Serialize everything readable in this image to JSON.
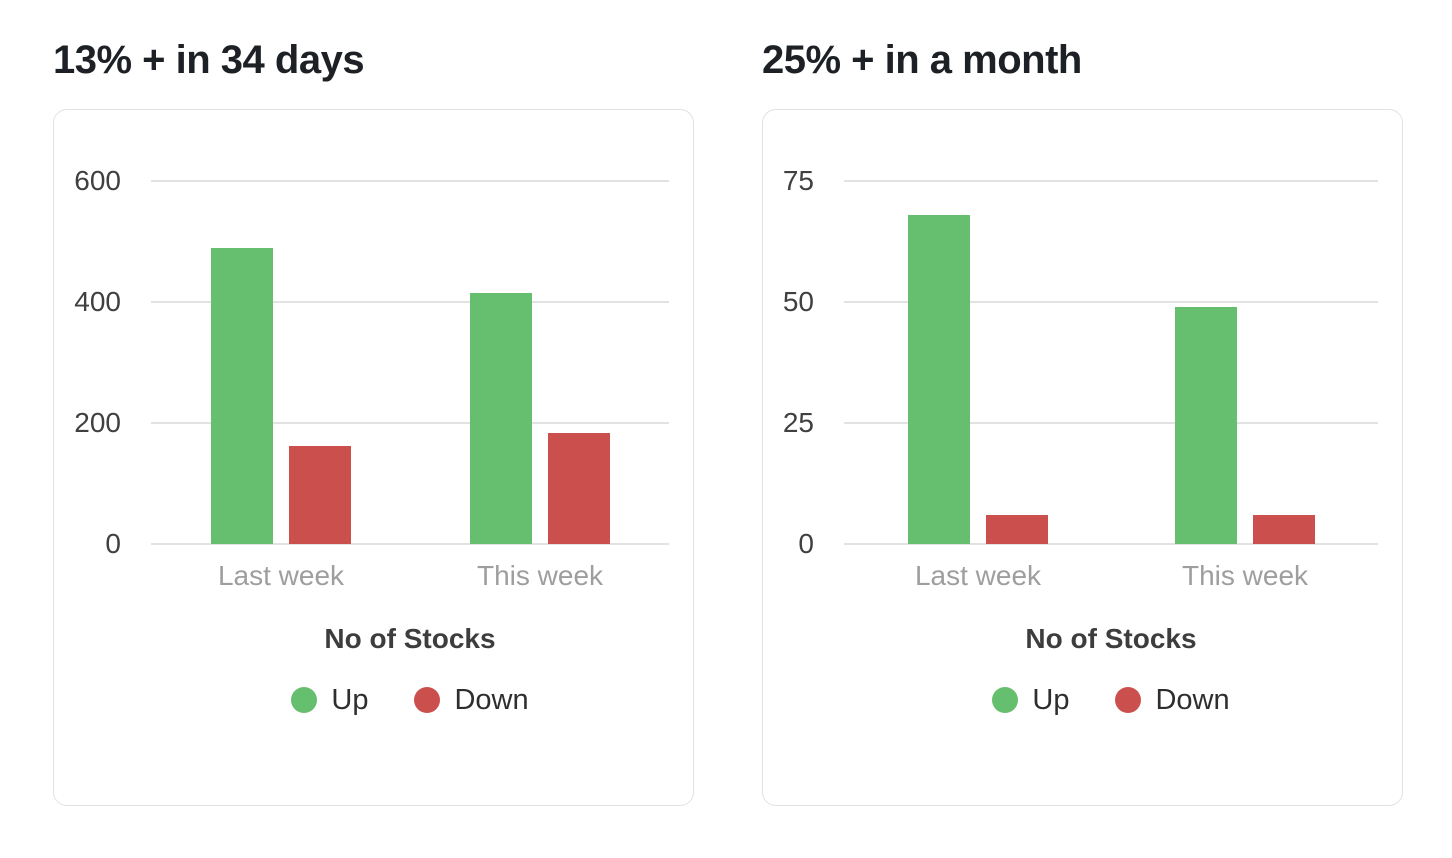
{
  "chart_data": [
    {
      "type": "bar",
      "title": "13% + in 34 days",
      "categories": [
        "Last week",
        "This week"
      ],
      "series": [
        {
          "name": "Up",
          "color": "#66bf6e",
          "values": [
            490,
            415
          ]
        },
        {
          "name": "Down",
          "color": "#cb504d",
          "values": [
            162,
            183
          ]
        }
      ],
      "xlabel": "No of Stocks",
      "yticks": [
        0,
        200,
        400,
        600
      ],
      "ylim": [
        0,
        600
      ],
      "grid": true,
      "legend": {
        "position": "bottom",
        "items": [
          "Up",
          "Down"
        ]
      }
    },
    {
      "type": "bar",
      "title": "25% + in a month",
      "categories": [
        "Last week",
        "This week"
      ],
      "series": [
        {
          "name": "Up",
          "color": "#66bf6e",
          "values": [
            68,
            49
          ]
        },
        {
          "name": "Down",
          "color": "#cb504d",
          "values": [
            6,
            6
          ]
        }
      ],
      "xlabel": "No of Stocks",
      "yticks": [
        0,
        25,
        50,
        75
      ],
      "ylim": [
        0,
        75
      ],
      "grid": true,
      "legend": {
        "position": "bottom",
        "items": [
          "Up",
          "Down"
        ]
      }
    }
  ],
  "theme": {
    "up_color": "#66bf6e",
    "down_color": "#cb504d",
    "grid_color": "#e2e2e2",
    "tick_label_color": "#404040",
    "category_label_color": "#9e9e9e",
    "axis_title_color": "#3d3d3d",
    "title_color": "#1d2125",
    "card_border_color": "#e2e2e2"
  }
}
